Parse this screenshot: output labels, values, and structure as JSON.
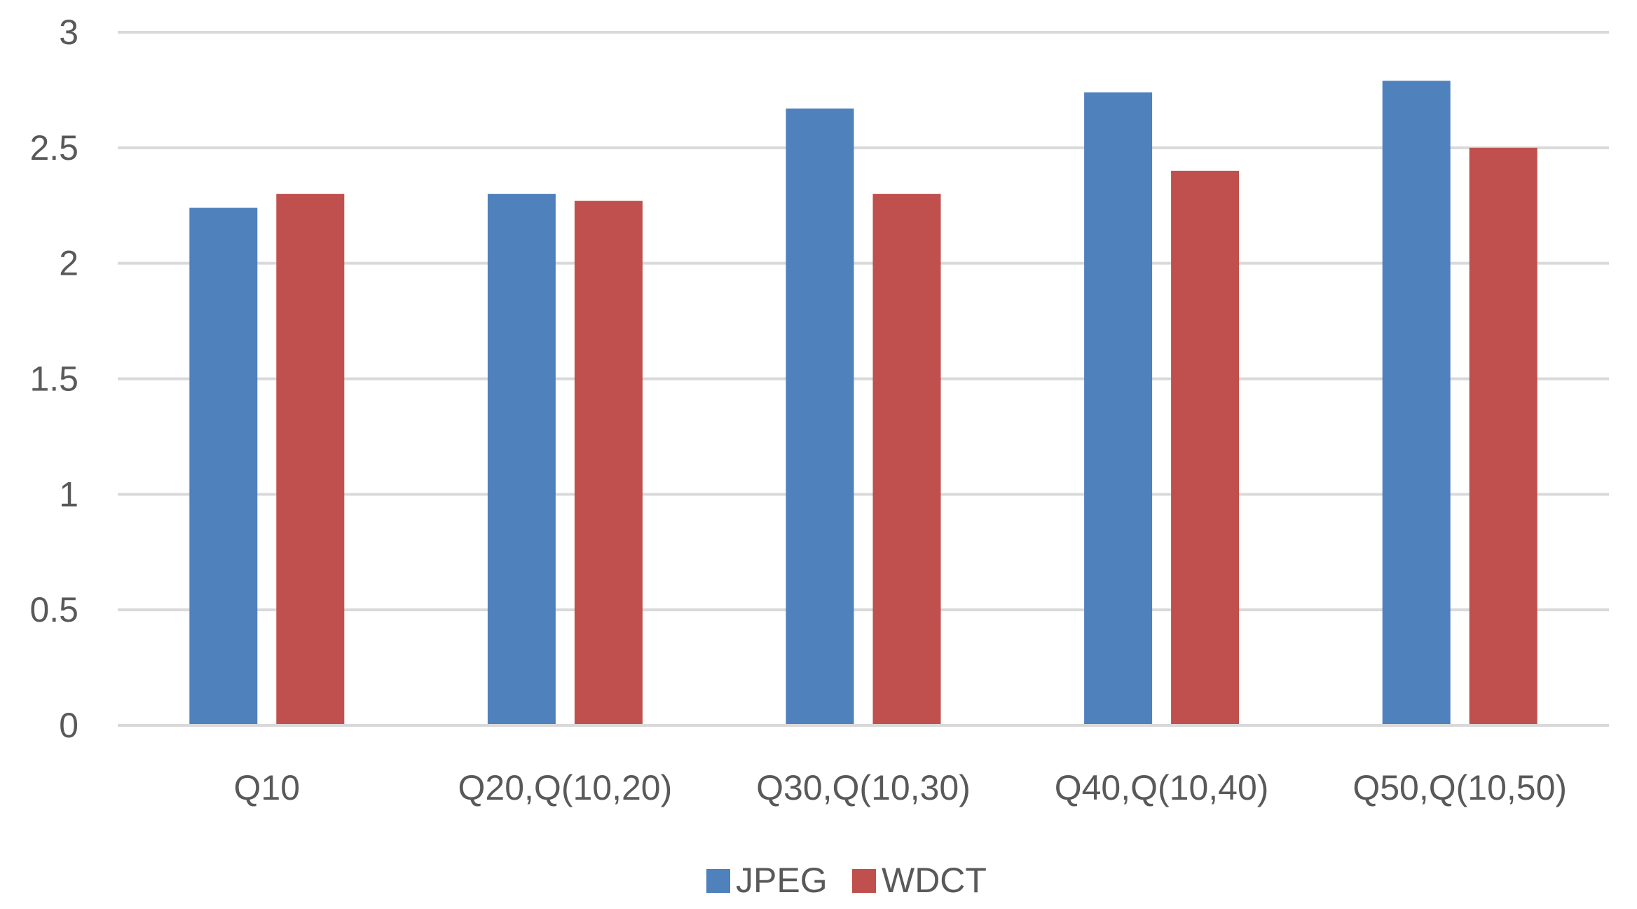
{
  "chart_data": {
    "type": "bar",
    "categories": [
      "Q10",
      "Q20,Q(10,20)",
      "Q30,Q(10,30)",
      "Q40,Q(10,40)",
      "Q50,Q(10,50)"
    ],
    "series": [
      {
        "name": "JPEG",
        "color": "#4f81bd",
        "values": [
          2.24,
          2.3,
          2.67,
          2.74,
          2.79
        ]
      },
      {
        "name": "WDCT",
        "color": "#c0504d",
        "values": [
          2.3,
          2.27,
          2.3,
          2.4,
          2.5
        ]
      }
    ],
    "y_ticks": [
      "0",
      "0.5",
      "1",
      "1.5",
      "2",
      "2.5",
      "3"
    ],
    "ylim": [
      0,
      3
    ],
    "grid": true,
    "gridline_color": "#d9d9d9",
    "legend_position": "bottom-center"
  }
}
